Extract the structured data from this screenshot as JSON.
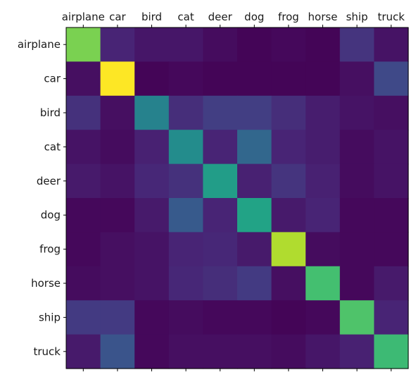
{
  "chart_data": {
    "type": "heatmap",
    "title": "",
    "xlabel": "",
    "ylabel": "",
    "x_categories": [
      "airplane",
      "car",
      "bird",
      "cat",
      "deer",
      "dog",
      "frog",
      "horse",
      "ship",
      "truck"
    ],
    "y_categories": [
      "airplane",
      "car",
      "bird",
      "cat",
      "deer",
      "dog",
      "frog",
      "horse",
      "ship",
      "truck"
    ],
    "x_tick_position": "top",
    "colormap": "viridis",
    "grid": false,
    "legend": "none",
    "value_range": [
      0,
      1
    ],
    "values": [
      [
        0.8,
        0.1,
        0.06,
        0.06,
        0.03,
        0.01,
        0.02,
        0.01,
        0.15,
        0.05
      ],
      [
        0.04,
        1.0,
        0.01,
        0.02,
        0.01,
        0.01,
        0.01,
        0.01,
        0.04,
        0.22
      ],
      [
        0.14,
        0.04,
        0.44,
        0.13,
        0.18,
        0.18,
        0.13,
        0.08,
        0.05,
        0.04
      ],
      [
        0.05,
        0.03,
        0.09,
        0.48,
        0.1,
        0.33,
        0.1,
        0.08,
        0.03,
        0.05
      ],
      [
        0.07,
        0.05,
        0.11,
        0.14,
        0.55,
        0.09,
        0.15,
        0.09,
        0.03,
        0.05
      ],
      [
        0.02,
        0.02,
        0.07,
        0.28,
        0.1,
        0.58,
        0.07,
        0.1,
        0.02,
        0.02
      ],
      [
        0.02,
        0.04,
        0.05,
        0.1,
        0.11,
        0.07,
        0.88,
        0.03,
        0.02,
        0.02
      ],
      [
        0.03,
        0.04,
        0.05,
        0.11,
        0.13,
        0.17,
        0.04,
        0.7,
        0.02,
        0.07
      ],
      [
        0.17,
        0.17,
        0.02,
        0.03,
        0.02,
        0.02,
        0.01,
        0.02,
        0.72,
        0.1
      ],
      [
        0.07,
        0.26,
        0.02,
        0.04,
        0.04,
        0.04,
        0.03,
        0.06,
        0.09,
        0.68
      ]
    ]
  }
}
